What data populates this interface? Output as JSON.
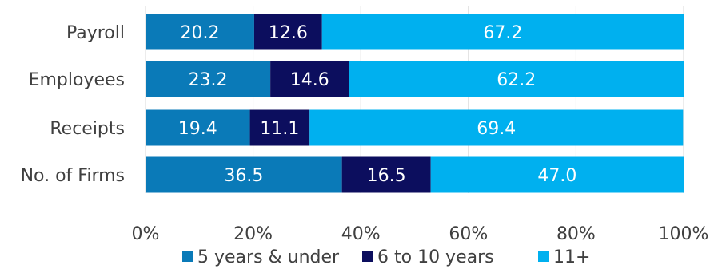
{
  "chart_data": {
    "type": "bar",
    "orientation": "horizontal",
    "stacked": true,
    "categories": [
      "Payroll",
      "Employees",
      "Receipts",
      "No. of Firms"
    ],
    "x_ticks": [
      "0%",
      "20%",
      "40%",
      "60%",
      "80%",
      "100%"
    ],
    "xlim": [
      0,
      100
    ],
    "series": [
      {
        "name": "5 years & under",
        "color": "#0a7ab8",
        "values": [
          20.2,
          23.2,
          19.4,
          36.5
        ],
        "labels": [
          "20.2",
          "23.2",
          "19.4",
          "36.5"
        ]
      },
      {
        "name": "6 to 10 years",
        "color": "#0c0e5e",
        "values": [
          12.6,
          14.6,
          11.1,
          16.5
        ],
        "labels": [
          "12.6",
          "14.6",
          "11.1",
          "16.5"
        ]
      },
      {
        "name": "11+",
        "color": "#00b0ef",
        "values": [
          67.2,
          62.2,
          69.4,
          47.0
        ],
        "labels": [
          "67.2",
          "62.2",
          "69.4",
          "47.0"
        ]
      }
    ],
    "legend_position": "bottom",
    "grid": true
  }
}
